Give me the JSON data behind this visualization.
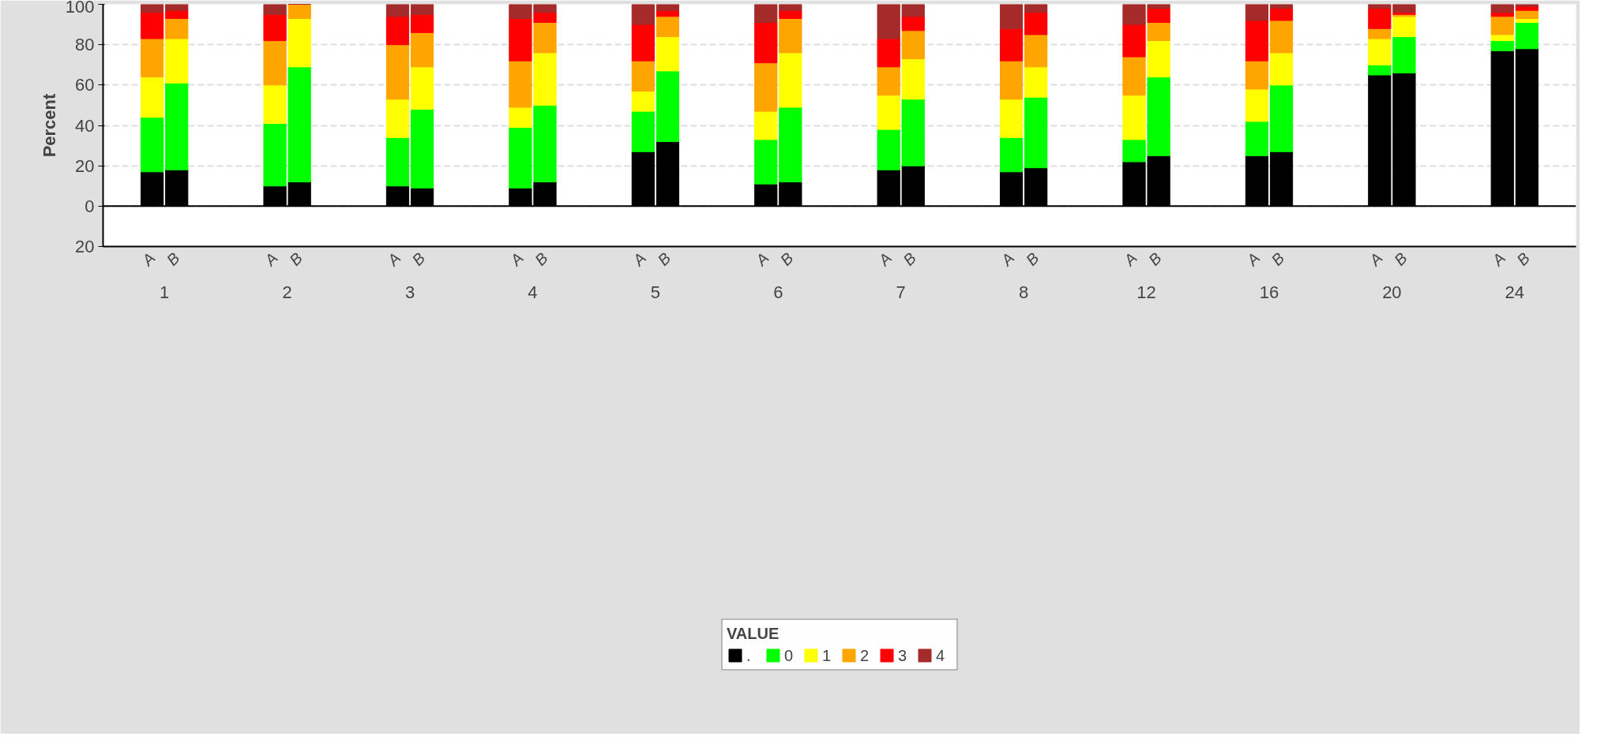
{
  "chart_data": {
    "type": "bar",
    "stacked": true,
    "ylabel": "Percent",
    "legend_title": "VALUE",
    "legend": "bottom",
    "grid": "y",
    "categories": [
      "A",
      "B",
      "A",
      "B",
      "A",
      "B",
      "A",
      "B",
      "A",
      "B",
      "A",
      "B",
      "A",
      "B",
      "A",
      "B",
      "A",
      "B",
      "A",
      "B",
      "A",
      "B",
      "A",
      "B"
    ],
    "annotations": [
      "1",
      "2",
      "3",
      "4",
      "5",
      "6",
      "7",
      "8",
      "12",
      "16",
      "20",
      "24"
    ],
    "ylim": [
      -20,
      100
    ],
    "yticks": [
      {
        "value": -20,
        "label": "20"
      },
      0,
      20,
      40,
      60,
      80,
      100
    ],
    "series": [
      {
        "name": ".",
        "color": "#000000",
        "values": [
          17,
          18,
          10,
          12,
          10,
          9,
          9,
          12,
          27,
          32,
          11,
          12,
          18,
          20,
          17,
          19,
          22,
          25,
          25,
          27,
          65,
          66,
          77,
          78
        ]
      },
      {
        "name": "0",
        "color": "#00ff00",
        "values": [
          27,
          43,
          31,
          57,
          24,
          39,
          30,
          38,
          20,
          35,
          22,
          37,
          20,
          33,
          17,
          35,
          11,
          39,
          17,
          33,
          5,
          18,
          5,
          13
        ]
      },
      {
        "name": "1",
        "color": "#ffff00",
        "values": [
          20,
          22,
          19,
          24,
          19,
          21,
          10,
          26,
          10,
          17,
          14,
          27,
          17,
          20,
          19,
          15,
          22,
          18,
          16,
          16,
          13,
          10,
          3,
          2
        ]
      },
      {
        "name": "2",
        "color": "#ffa500",
        "values": [
          19,
          10,
          22,
          7,
          27,
          17,
          23,
          15,
          15,
          10,
          24,
          17,
          14,
          14,
          19,
          16,
          19,
          9,
          14,
          16,
          5,
          1,
          9,
          4
        ]
      },
      {
        "name": "3",
        "color": "#ff0000",
        "values": [
          13,
          4,
          13,
          0,
          14,
          9,
          21,
          5,
          18,
          3,
          20,
          4,
          14,
          7,
          16,
          11,
          16,
          7,
          20,
          6,
          10,
          1,
          2,
          2
        ]
      },
      {
        "name": "4",
        "color": "#a52a2a",
        "values": [
          4,
          3,
          5,
          0,
          6,
          5,
          7,
          4,
          10,
          3,
          9,
          3,
          17,
          6,
          12,
          4,
          10,
          2,
          8,
          2,
          2,
          4,
          4,
          1
        ]
      }
    ]
  }
}
